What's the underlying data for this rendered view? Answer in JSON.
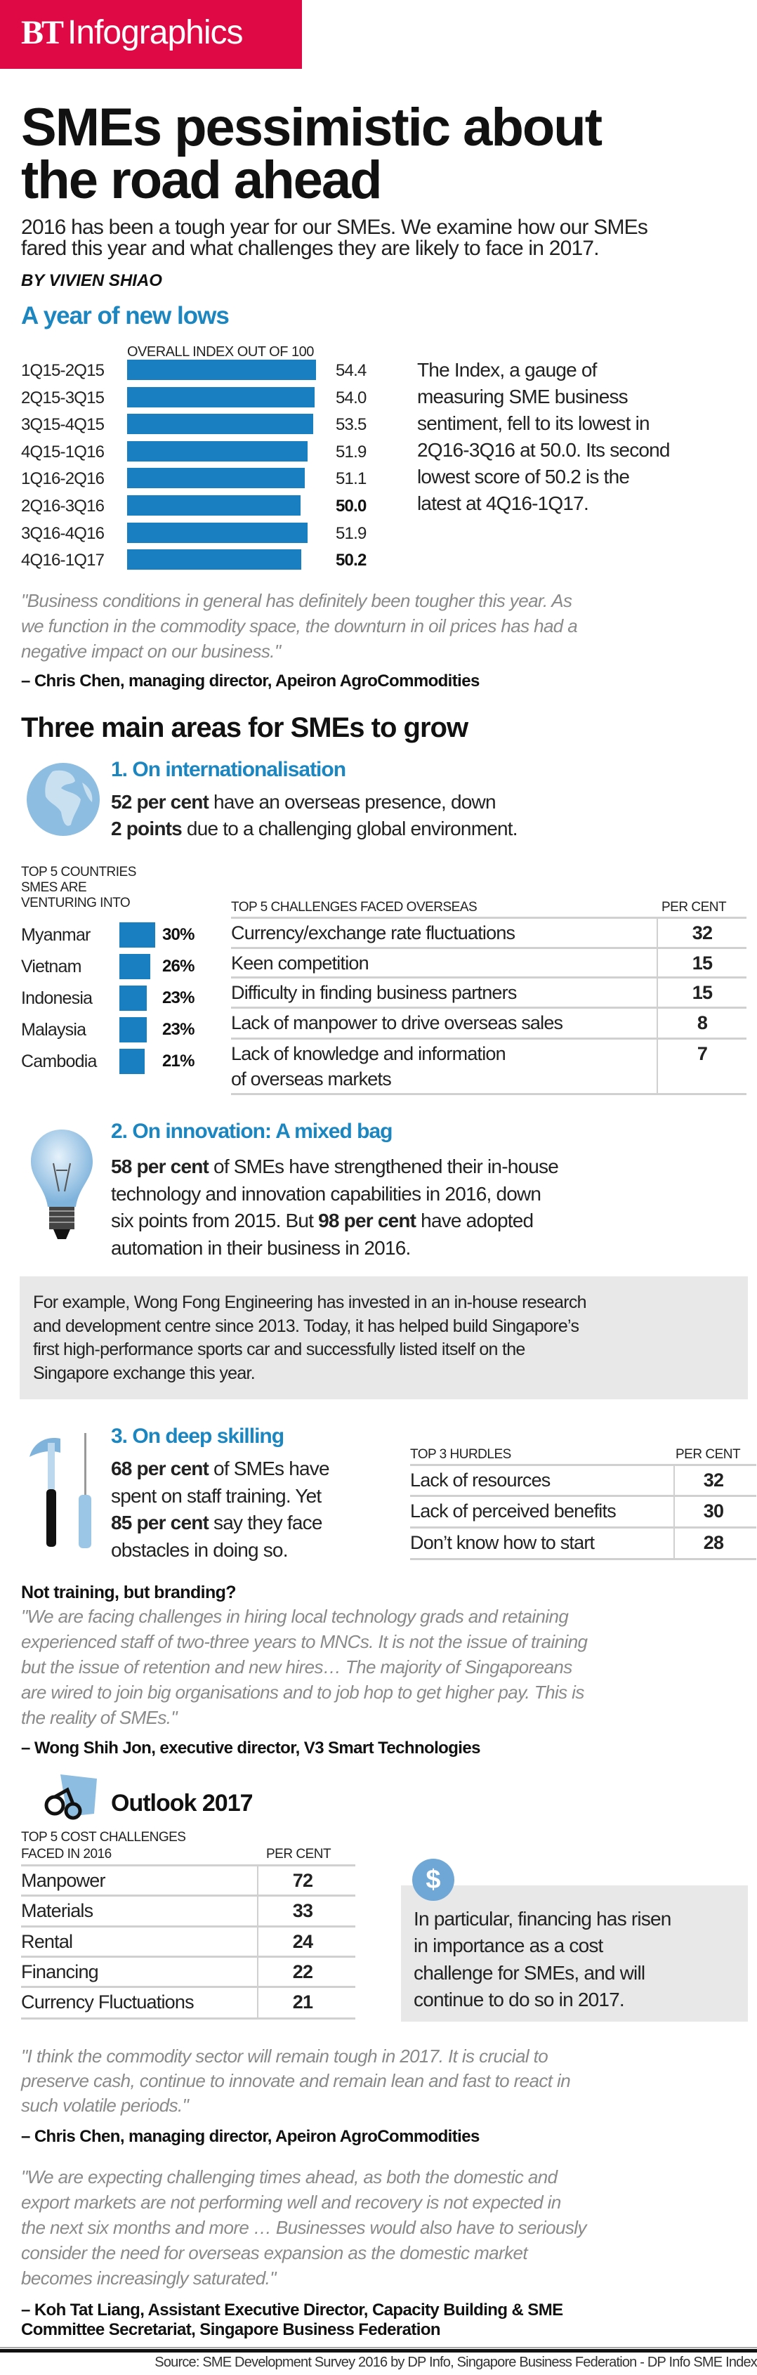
{
  "brand": {
    "bt": "BT",
    "section": "Infographics",
    "color": "#df0a45"
  },
  "headline": "SMEs pessimistic about\nthe road ahead",
  "standfirst": "2016 has been a tough year for our SMEs. We examine how our SMEs\nfared this year and what challenges they are likely to face in 2017.",
  "byline": "BY VIVIEN SHIAO",
  "index_section": {
    "heading": "A year of new lows",
    "note": "The Index, a gauge of\nmeasuring SME business\nsentiment, fell to its lowest in\n2Q16-3Q16 at 50.0. Its second\nlowest score of 50.2 is the\nlatest at 4Q16-1Q17."
  },
  "chart_data": [
    {
      "type": "bar",
      "orientation": "horizontal",
      "title": "OVERALL INDEX OUT OF 100",
      "categories": [
        "1Q15-2Q15",
        "2Q15-3Q15",
        "3Q15-4Q15",
        "4Q15-1Q16",
        "1Q16-2Q16",
        "2Q16-3Q16",
        "3Q16-4Q16",
        "4Q16-1Q17"
      ],
      "values": [
        54.4,
        54.0,
        53.5,
        51.9,
        51.1,
        50.0,
        51.9,
        50.2
      ],
      "labels": [
        "54.4",
        "54.0",
        "53.5",
        "51.9",
        "51.1",
        "50.0",
        "51.9",
        "50.2"
      ],
      "bold_labels": [
        "2Q16-3Q16",
        "4Q16-1Q17"
      ],
      "color": "#1a7fc1",
      "xlim": [
        0,
        100
      ]
    },
    {
      "type": "bar",
      "orientation": "horizontal",
      "title": "TOP 5 COUNTRIES\nSMES ARE\nVENTURING INTO",
      "categories": [
        "Myanmar",
        "Vietnam",
        "Indonesia",
        "Malaysia",
        "Cambodia"
      ],
      "values": [
        30,
        26,
        23,
        23,
        21
      ],
      "labels": [
        "30%",
        "26%",
        "23%",
        "23%",
        "21%"
      ],
      "color": "#1a7fc1"
    }
  ],
  "quote1": {
    "text": "\"Business conditions in general has definitely been tougher this year. As\nwe function in the commodity space, the downturn in oil prices has had a\nnegative impact on our business.\"",
    "attribution": "– Chris Chen, managing director, Apeiron AgroCommodities"
  },
  "areas_heading": "Three main areas for SMEs to grow",
  "area1": {
    "heading": "1. On internationalisation",
    "l1_bold": "52 per cent",
    "l1": " have an overseas presence, down",
    "l2_bold": "2 points",
    "l2": " due to a challenging global environment.",
    "table": {
      "header": "TOP 5 CHALLENGES FACED OVERSEAS",
      "value_header": "PER CENT",
      "rows": [
        {
          "label": "Currency/exchange rate fluctuations",
          "value": "32"
        },
        {
          "label": "Keen competition",
          "value": "15"
        },
        {
          "label": "Difficulty in finding business partners",
          "value": "15"
        },
        {
          "label": "Lack of manpower to drive overseas sales",
          "value": "8"
        },
        {
          "label": "Lack of knowledge and information\nof overseas markets",
          "value": "7"
        }
      ]
    }
  },
  "area2": {
    "heading": "2. On innovation: A mixed bag",
    "b1": "58 per cent",
    "t1": " of SMEs have strengthened their in-house\ntechnology and innovation capabilities in 2016, down\nsix points from 2015. But ",
    "b2": "98 per cent",
    "t2": " have adopted\nautomation in their business in 2016.",
    "example": "For example, Wong Fong Engineering has invested in an in-house research\nand development centre since 2013. Today, it has helped build Singapore’s\nfirst high-performance sports car and successfully listed itself on the\nSingapore exchange this year."
  },
  "area3": {
    "heading": "3. On deep skilling",
    "b1": "68 per cent",
    "t1": " of SMEs have\nspent on staff training. Yet\n",
    "b2": "85 per cent",
    "t2": " say they face\nobstacles in doing so.",
    "table": {
      "header": "TOP 3 HURDLES",
      "value_header": "PER CENT",
      "rows": [
        {
          "label": "Lack of resources",
          "value": "32"
        },
        {
          "label": "Lack of perceived benefits",
          "value": "30"
        },
        {
          "label": "Don’t know how to start",
          "value": "28"
        }
      ]
    }
  },
  "branding": {
    "heading": "Not training, but branding?",
    "text": "\"We are facing challenges in hiring local technology grads and retaining\nexperienced staff of two-three years to MNCs. It is not the issue of training\nbut the issue of retention and new hires… The majority of Singaporeans\nare wired to join big organisations and to job hop to get higher pay. This is\nthe reality of SMEs.\"",
    "attribution": "– Wong Shih Jon, executive director, V3 Smart Technologies"
  },
  "outlook": {
    "heading": "Outlook 2017",
    "table": {
      "header": "TOP 5 COST CHALLENGES\nFACED IN 2016",
      "value_header": "PER CENT",
      "rows": [
        {
          "label": "Manpower",
          "value": "72"
        },
        {
          "label": "Materials",
          "value": "33"
        },
        {
          "label": "Rental",
          "value": "24"
        },
        {
          "label": "Financing",
          "value": "22"
        },
        {
          "label": "Currency Fluctuations",
          "value": "21"
        }
      ]
    },
    "financing_note": "In particular, financing has risen\nin importance as a cost\nchallenge for SMEs, and will\ncontinue to do so in 2017.",
    "dollar_symbol": "$"
  },
  "quote3": {
    "text": "\"I think the commodity sector will remain tough in 2017. It is crucial to\npreserve cash, continue to innovate and remain lean and fast to react in\nsuch volatile periods.\"",
    "attribution": "– Chris Chen, managing director, Apeiron AgroCommodities"
  },
  "quote4": {
    "text": "\"We are expecting challenging times ahead, as both the domestic and\nexport markets are not performing well and recovery is not expected in\nthe next six months and more … Businesses would also have to seriously\nconsider the need for overseas expansion as the domestic market\nbecomes increasingly saturated.\"",
    "attribution": "– Koh Tat Liang, Assistant Executive Director, Capacity Building & SME\nCommittee Secretariat, Singapore Business Federation"
  },
  "source": "Source: SME Development Survey 2016 by DP Info, Singapore Business Federation - DP Info SME Index",
  "colors": {
    "accent_blue": "#1c86c0",
    "bar_blue": "#1a7fc1",
    "icon_blue": "#8dbde0",
    "quote_gray": "#8a8a8a",
    "box_gray": "#e8e8e8"
  }
}
